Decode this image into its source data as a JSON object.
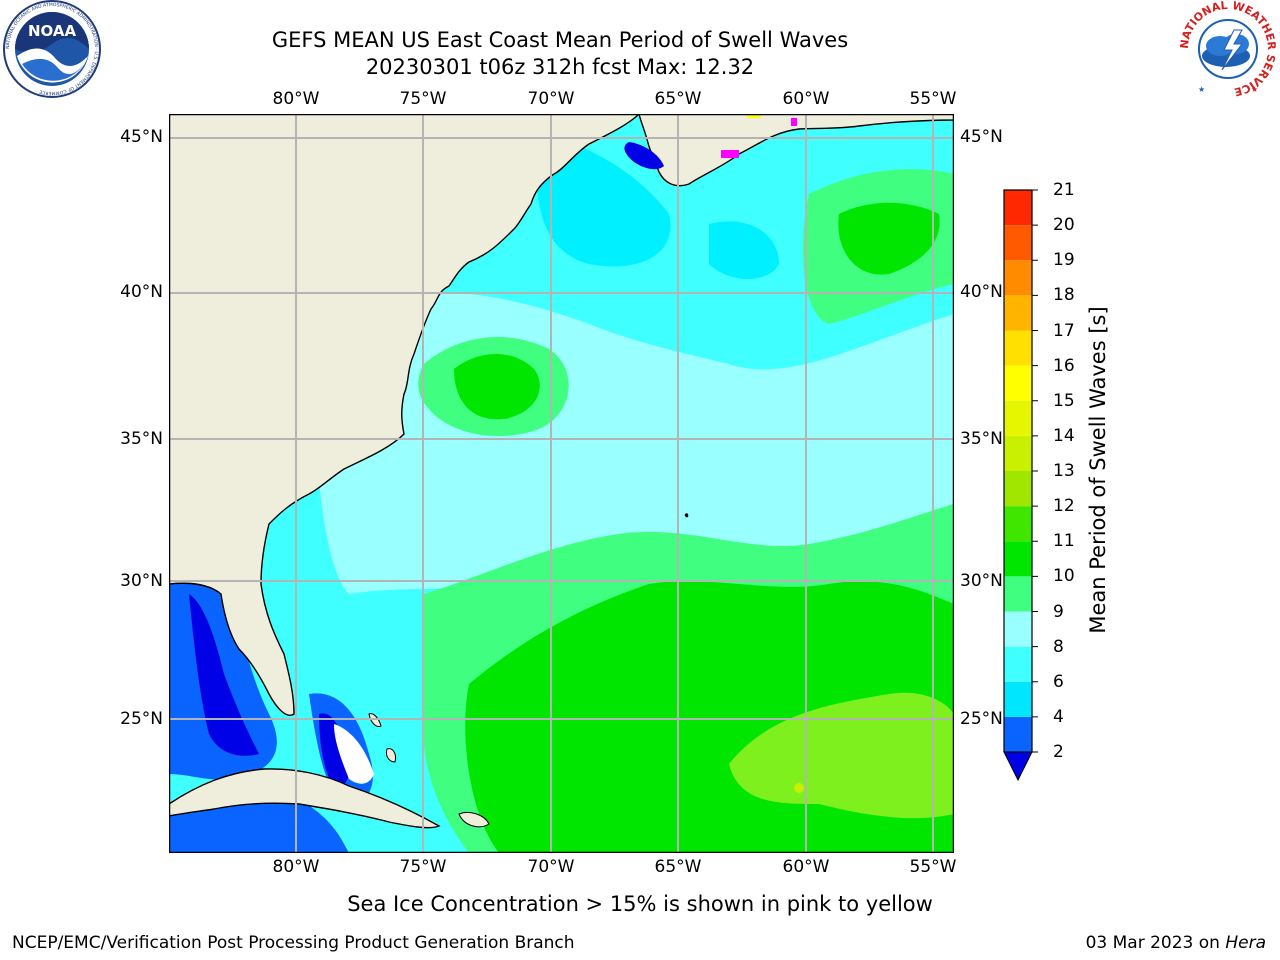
{
  "header": {
    "title": "GEFS MEAN US East Coast Mean Period of Swell Waves",
    "subtitle": "20230301 t06z 312h fcst   Max: 12.32"
  },
  "logos": {
    "noaa": {
      "text": "NOAA",
      "ring_text": "NATIONAL OCEANIC AND ATMOSPHERIC ADMINISTRATION · U.S. DEPARTMENT OF COMMERCE"
    },
    "nws": {
      "ring_text": "NATIONAL WEATHER SERVICE"
    }
  },
  "map": {
    "lon_labels": [
      "80°W",
      "75°W",
      "70°W",
      "65°W",
      "60°W",
      "55°W"
    ],
    "lat_labels": [
      "45°N",
      "40°N",
      "35°N",
      "30°N",
      "25°N"
    ],
    "lon_range": [
      -85,
      -54.5
    ],
    "lat_range": [
      20.5,
      45.8
    ],
    "grid": true,
    "land_color": "#efeedc",
    "grid_color": "#b4b4b4"
  },
  "colorbar": {
    "label": "Mean Period of Swell Waves [s]",
    "ticks": [
      "2",
      "4",
      "6",
      "8",
      "9",
      "10",
      "11",
      "12",
      "13",
      "14",
      "15",
      "16",
      "17",
      "18",
      "19",
      "20",
      "21"
    ],
    "colors": [
      "#0a64ff",
      "#00e6ff",
      "#40ffff",
      "#99ffff",
      "#40ff80",
      "#00e600",
      "#40e600",
      "#a0e600",
      "#c8f000",
      "#e6f500",
      "#ffff00",
      "#ffe000",
      "#ffb400",
      "#ff8c00",
      "#ff5a00",
      "#ff2800",
      "#ff0000"
    ],
    "extend_color": "#0000e6"
  },
  "ice_note": "Sea Ice Concentration > 15% is shown in pink to yellow",
  "footer": {
    "left": "NCEP/EMC/Verification Post Processing Product Generation Branch",
    "date": "03 Mar 2023 on",
    "machine": "Hera"
  }
}
